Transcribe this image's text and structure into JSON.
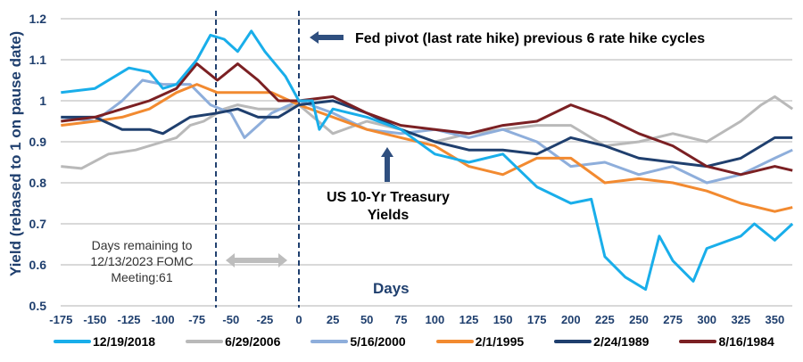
{
  "chart_data": {
    "type": "line",
    "ylabel": "Yield  (rebased to 1 on pause date)",
    "xlabel": "Days",
    "ylim": [
      0.5,
      1.2
    ],
    "xlim": [
      -175,
      363
    ],
    "yticks": [
      "1.2",
      "1.1",
      "1",
      "0.9",
      "0.8",
      "0.7",
      "0.6",
      "0.5"
    ],
    "xticks": [
      "-175",
      "-150",
      "-125",
      "-100",
      "-75",
      "-50",
      "-25",
      "0",
      "25",
      "50",
      "75",
      "100",
      "125",
      "150",
      "175",
      "200",
      "225",
      "250",
      "275",
      "300",
      "325",
      "350"
    ],
    "grid": true,
    "legend_position": "bottom",
    "series": [
      {
        "name": "12/19/2018",
        "color": "#19aeea",
        "x": [
          -175,
          -150,
          -125,
          -110,
          -100,
          -90,
          -75,
          -65,
          -55,
          -45,
          -35,
          -25,
          -10,
          0,
          10,
          15,
          25,
          50,
          75,
          100,
          125,
          150,
          175,
          200,
          215,
          225,
          240,
          255,
          265,
          275,
          290,
          300,
          325,
          335,
          350,
          363
        ],
        "values": [
          1.02,
          1.03,
          1.08,
          1.07,
          1.03,
          1.04,
          1.1,
          1.16,
          1.15,
          1.12,
          1.17,
          1.12,
          1.06,
          1.0,
          1.0,
          0.93,
          0.98,
          0.96,
          0.93,
          0.87,
          0.85,
          0.87,
          0.79,
          0.75,
          0.76,
          0.62,
          0.57,
          0.54,
          0.67,
          0.61,
          0.56,
          0.64,
          0.67,
          0.7,
          0.66,
          0.7
        ]
      },
      {
        "name": "6/29/2006",
        "color": "#b9b9b9",
        "x": [
          -175,
          -160,
          -140,
          -120,
          -100,
          -90,
          -80,
          -70,
          -55,
          -45,
          -30,
          -10,
          0,
          25,
          50,
          75,
          100,
          125,
          150,
          175,
          200,
          225,
          250,
          275,
          300,
          325,
          340,
          350,
          363
        ],
        "values": [
          0.84,
          0.835,
          0.87,
          0.88,
          0.9,
          0.91,
          0.94,
          0.95,
          0.98,
          0.99,
          0.98,
          0.98,
          0.99,
          0.92,
          0.95,
          0.93,
          0.9,
          0.92,
          0.93,
          0.94,
          0.94,
          0.89,
          0.9,
          0.92,
          0.9,
          0.95,
          0.99,
          1.01,
          0.98
        ]
      },
      {
        "name": "5/16/2000",
        "color": "#8eaedb",
        "x": [
          -175,
          -150,
          -130,
          -115,
          -100,
          -80,
          -65,
          -50,
          -40,
          -30,
          -20,
          0,
          25,
          50,
          75,
          100,
          125,
          150,
          175,
          200,
          225,
          250,
          275,
          300,
          325,
          350,
          363
        ],
        "values": [
          0.96,
          0.95,
          1.0,
          1.05,
          1.04,
          1.04,
          0.99,
          0.97,
          0.91,
          0.94,
          0.97,
          1.0,
          0.97,
          0.93,
          0.92,
          0.93,
          0.91,
          0.93,
          0.9,
          0.84,
          0.85,
          0.82,
          0.84,
          0.8,
          0.82,
          0.86,
          0.88
        ]
      },
      {
        "name": "2/1/1995",
        "color": "#f28a30",
        "x": [
          -175,
          -150,
          -130,
          -110,
          -90,
          -75,
          -60,
          -40,
          -20,
          0,
          25,
          50,
          75,
          100,
          125,
          150,
          175,
          200,
          225,
          250,
          275,
          300,
          325,
          350,
          363
        ],
        "values": [
          0.94,
          0.95,
          0.96,
          0.98,
          1.02,
          1.04,
          1.02,
          1.02,
          1.02,
          0.99,
          0.96,
          0.93,
          0.91,
          0.89,
          0.84,
          0.82,
          0.86,
          0.86,
          0.8,
          0.81,
          0.8,
          0.78,
          0.75,
          0.73,
          0.74
        ]
      },
      {
        "name": "2/24/1989",
        "color": "#1f3f6e",
        "x": [
          -175,
          -150,
          -130,
          -110,
          -100,
          -80,
          -60,
          -45,
          -30,
          -15,
          0,
          25,
          50,
          75,
          100,
          125,
          150,
          175,
          200,
          225,
          250,
          275,
          300,
          325,
          350,
          363
        ],
        "values": [
          0.96,
          0.96,
          0.93,
          0.93,
          0.92,
          0.96,
          0.97,
          0.98,
          0.96,
          0.96,
          0.99,
          1.0,
          0.97,
          0.93,
          0.9,
          0.88,
          0.88,
          0.87,
          0.91,
          0.89,
          0.86,
          0.85,
          0.84,
          0.86,
          0.91,
          0.91
        ]
      },
      {
        "name": "8/16/1984",
        "color": "#7b2023",
        "x": [
          -175,
          -150,
          -130,
          -110,
          -90,
          -75,
          -60,
          -45,
          -30,
          -15,
          0,
          25,
          50,
          75,
          100,
          125,
          150,
          175,
          200,
          225,
          250,
          275,
          300,
          325,
          350,
          363
        ],
        "values": [
          0.95,
          0.96,
          0.98,
          1.0,
          1.03,
          1.09,
          1.05,
          1.09,
          1.05,
          1.0,
          1.0,
          1.01,
          0.97,
          0.94,
          0.93,
          0.92,
          0.94,
          0.95,
          0.99,
          0.96,
          0.92,
          0.89,
          0.84,
          0.82,
          0.84,
          0.83
        ]
      }
    ],
    "vlines": [
      -61,
      0
    ],
    "annotations": {
      "fed_pivot": "Fed pivot (last rate hike) previous 6 rate hike cycles",
      "treasury": "US 10-Yr Treasury Yields",
      "days_remaining": [
        "Days remaining to",
        "12/13/2023 FOMC",
        "Meeting:61"
      ]
    }
  }
}
